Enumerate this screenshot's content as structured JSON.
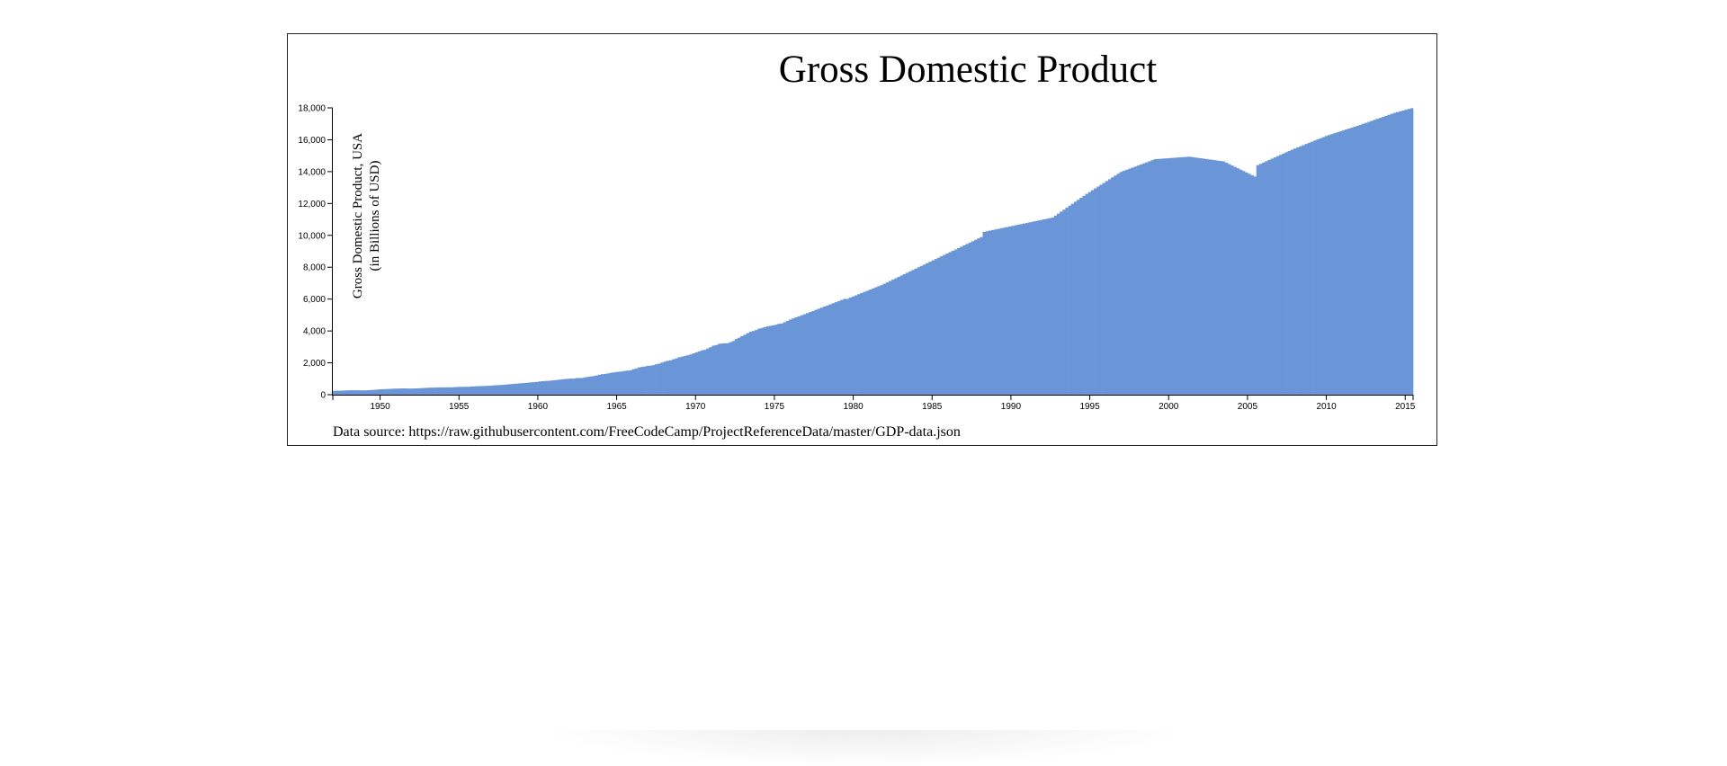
{
  "chart_data": {
    "type": "bar",
    "title": "Gross Domestic Product",
    "ylabel_lines": [
      "Gross Domestic Product, USA",
      "(in Billions of USD)"
    ],
    "xlabel": "",
    "x_range": [
      1947,
      2015.5
    ],
    "ylim": [
      0,
      18000
    ],
    "x_ticks": [
      "1950",
      "1955",
      "1960",
      "1965",
      "1970",
      "1975",
      "1980",
      "1985",
      "1990",
      "1995",
      "2000",
      "2005",
      "2010",
      "2015"
    ],
    "y_ticks": [
      "0",
      "2,000",
      "4,000",
      "6,000",
      "8,000",
      "10,000",
      "12,000",
      "14,000",
      "16,000",
      "18,000"
    ],
    "bar_color": "#6a96d8",
    "series": [
      {
        "values": [
          243.1,
          246.3,
          250.1,
          260.3,
          266.2,
          272.9,
          279.5,
          280.7,
          275.4,
          271.7,
          273.3,
          271.0,
          281.2,
          290.7,
          308.5,
          320.3,
          336.4,
          344.5,
          351.8,
          361.4,
          368.1,
          381.2,
          382.8,
          387.8,
          395.4,
          391.7,
          385.3,
          386.2,
          389.9,
          395.4,
          403.9,
          415.6,
          426.9,
          435.1,
          441.3,
          442.8,
          454.0,
          458.0,
          460.6,
          463.8,
          457.8,
          463.2,
          470.7,
          485.5,
          489.9,
          490.2,
          495.7,
          496.3,
          511.5,
          523.5,
          532.1,
          540.5,
          540.3,
          549.5,
          560.5,
          568.4,
          581.8,
          595.7,
          607.6,
          614.6,
          630.7,
          648.5,
          662.2,
          680.5,
          693.0,
          708.6,
          722.3,
          740.3,
          749.4,
          773.8,
          785.9,
          801.4,
          828.1,
          846.5,
          863.0,
          869.5,
          883.0,
          903.5,
          923.7,
          942.4,
          961.9,
          983.8,
          993.0,
          1013.8,
          1010.1,
          1037.0,
          1048.5,
          1049.3,
          1089.9,
          1119.2,
          1146.6,
          1170.7,
          1207.1,
          1249.6,
          1285.6,
          1303.6,
          1335.3,
          1370.1,
          1395.1,
          1423.4,
          1442.9,
          1460.3,
          1493.2,
          1511.6,
          1537.9,
          1605.6,
          1652.0,
          1714.8,
          1746.3,
          1768.5,
          1811.9,
          1824.5,
          1853.5,
          1909.8,
          1950.3,
          2017.3,
          2080.5,
          2128.6,
          2156.6,
          2223.9,
          2279.7,
          2350.2,
          2389.0,
          2433.1,
          2475.4,
          2525.3,
          2587.2,
          2654.1,
          2717.0,
          2782.5,
          2817.4,
          2901.3,
          2979.0,
          3079.6,
          3112.1,
          3187.0,
          3212.6,
          3222.4,
          3233.7,
          3296.7,
          3371.0,
          3496.9,
          3573.0,
          3674.4,
          3757.7,
          3862.0,
          3946.1,
          3999.1,
          4057.5,
          4141.9,
          4183.5,
          4241.3,
          4286.8,
          4322.9,
          4356.3,
          4391.0,
          4447.3,
          4467.9,
          4545.2,
          4633.1,
          4710.9,
          4789.0,
          4859.9,
          4917.1,
          4981.6,
          5048.7,
          5119.1,
          5189.1,
          5258.4,
          5327.1,
          5395.7,
          5464.4,
          5533.1,
          5601.8,
          5670.1,
          5738.9,
          5807.7,
          5876.4,
          5945.0,
          6013.5,
          6010.9,
          6090.4,
          6162.6,
          6234.8,
          6306.9,
          6379.1,
          6451.0,
          6523.7,
          6595.4,
          6667.4,
          6739.6,
          6811.3,
          6877.6,
          6963.7,
          7049.8,
          7135.9,
          7222.0,
          7308.0,
          7394.1,
          7480.2,
          7566.3,
          7652.4,
          7738.5,
          7824.6,
          7910.7,
          7996.8,
          8082.9,
          8169.0,
          8255.1,
          8341.2,
          8427.3,
          8513.4,
          8599.5,
          8685.6,
          8771.7,
          8857.8,
          8943.9,
          9030.0,
          9116.1,
          9202.2,
          9288.3,
          9374.4,
          9460.5,
          9546.6,
          9632.7,
          9718.8,
          9804.9,
          9891.0,
          10221.0,
          10258.3,
          10295.6,
          10332.9,
          10370.2,
          10407.5,
          10444.8,
          10482.1,
          10519.4,
          10556.7,
          10594.0,
          10631.3,
          10668.6,
          10705.9,
          10743.2,
          10780.5,
          10817.8,
          10855.1,
          10892.4,
          10929.7,
          10967.0,
          11004.3,
          11041.6,
          11078.9,
          11116.2,
          11240.3,
          11364.4,
          11488.5,
          11612.6,
          11736.7,
          11860.8,
          11984.9,
          12109.0,
          12233.1,
          12357.2,
          12481.3,
          12605.4,
          12720.1,
          12834.8,
          12949.5,
          13064.2,
          13178.9,
          13293.6,
          13408.3,
          13523.0,
          13637.7,
          13752.4,
          13867.1,
          13981.8,
          14048.5,
          14115.2,
          14181.9,
          14248.6,
          14315.3,
          14382.0,
          14448.7,
          14515.4,
          14582.1,
          14648.8,
          14715.5,
          14782.2,
          14795.1,
          14808.0,
          14820.9,
          14833.8,
          14846.7,
          14859.6,
          14872.5,
          14885.4,
          14898.3,
          14911.2,
          14924.1,
          14937.0,
          14912.4,
          14887.8,
          14863.2,
          14838.6,
          14814.0,
          14789.4,
          14764.8,
          14740.2,
          14715.6,
          14691.0,
          14666.4,
          14641.8,
          14555.2,
          14468.6,
          14382.0,
          14295.4,
          14208.8,
          14122.2,
          14035.6,
          13949.0,
          13862.4,
          13775.8,
          13689.2,
          14408.1,
          14488.7,
          14569.3,
          14649.9,
          14730.5,
          14811.1,
          14891.7,
          14972.3,
          15052.9,
          15133.5,
          15214.1,
          15294.7,
          15375.3,
          15447.1,
          15518.9,
          15590.7,
          15662.5,
          15734.3,
          15806.1,
          15877.9,
          15949.7,
          16021.5,
          16093.3,
          16165.1,
          16236.9,
          16295.3,
          16353.7,
          16412.1,
          16470.5,
          16528.9,
          16587.3,
          16645.7,
          16704.1,
          16762.5,
          16820.9,
          16879.3,
          16937.7,
          17000.3,
          17062.9,
          17125.5,
          17188.1,
          17250.7,
          17313.3,
          17375.9,
          17438.5,
          17501.1,
          17563.7,
          17626.3,
          17688.9,
          17737.4,
          17785.9,
          17834.4,
          17882.9,
          17931.4,
          17979.9
        ]
      }
    ]
  },
  "source_note": "Data source: https://raw.githubusercontent.com/FreeCodeCamp/ProjectReferenceData/master/GDP-data.json"
}
